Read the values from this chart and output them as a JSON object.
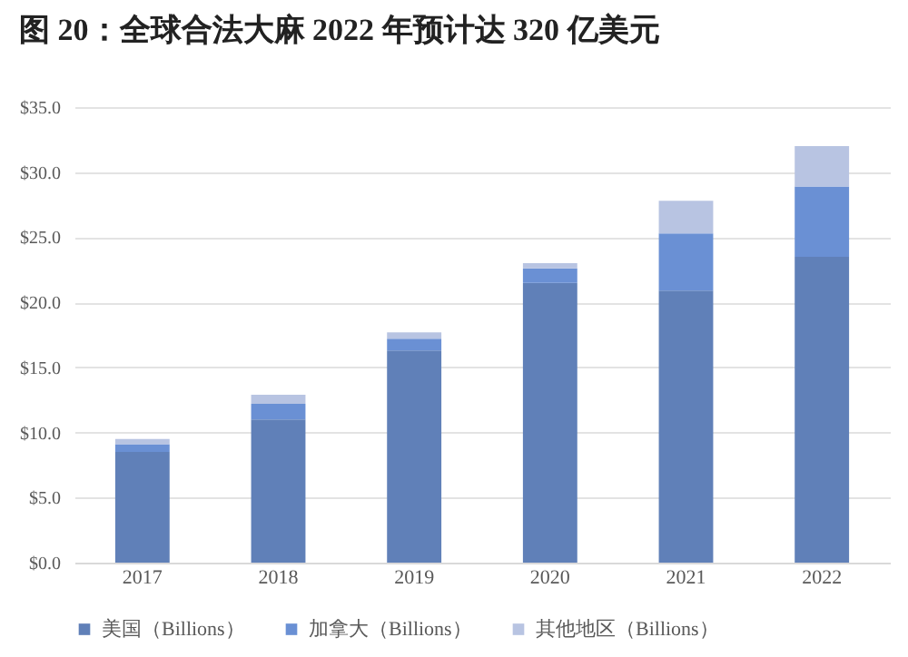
{
  "chart_data": {
    "type": "bar",
    "title": "图 20：全球合法大麻 2022 年预计达 320 亿美元",
    "stacked": true,
    "categories": [
      "2017",
      "2018",
      "2019",
      "2020",
      "2021",
      "2022"
    ],
    "series": [
      {
        "name": "美国（Billions）",
        "color": "#6080b8",
        "values": [
          8.5,
          11.0,
          16.3,
          21.5,
          20.9,
          23.5
        ]
      },
      {
        "name": "加拿大（Billions）",
        "color": "#6a90d4",
        "values": [
          0.6,
          1.2,
          0.9,
          1.1,
          4.4,
          5.4
        ]
      },
      {
        "name": "其他地区（Billions）",
        "color": "#b8c4e2",
        "values": [
          0.4,
          0.7,
          0.5,
          0.4,
          2.5,
          3.1
        ]
      }
    ],
    "ylim": [
      0,
      35
    ],
    "yticks": [
      {
        "value": 0,
        "label": "$0.0"
      },
      {
        "value": 5,
        "label": "$5.0"
      },
      {
        "value": 10,
        "label": "$10.0"
      },
      {
        "value": 15,
        "label": "$15.0"
      },
      {
        "value": 20,
        "label": "$20.0"
      },
      {
        "value": 25,
        "label": "$25.0"
      },
      {
        "value": 30,
        "label": "$30.0"
      },
      {
        "value": 35,
        "label": "$35.0"
      }
    ],
    "grid": "y",
    "legend": "bottom"
  }
}
